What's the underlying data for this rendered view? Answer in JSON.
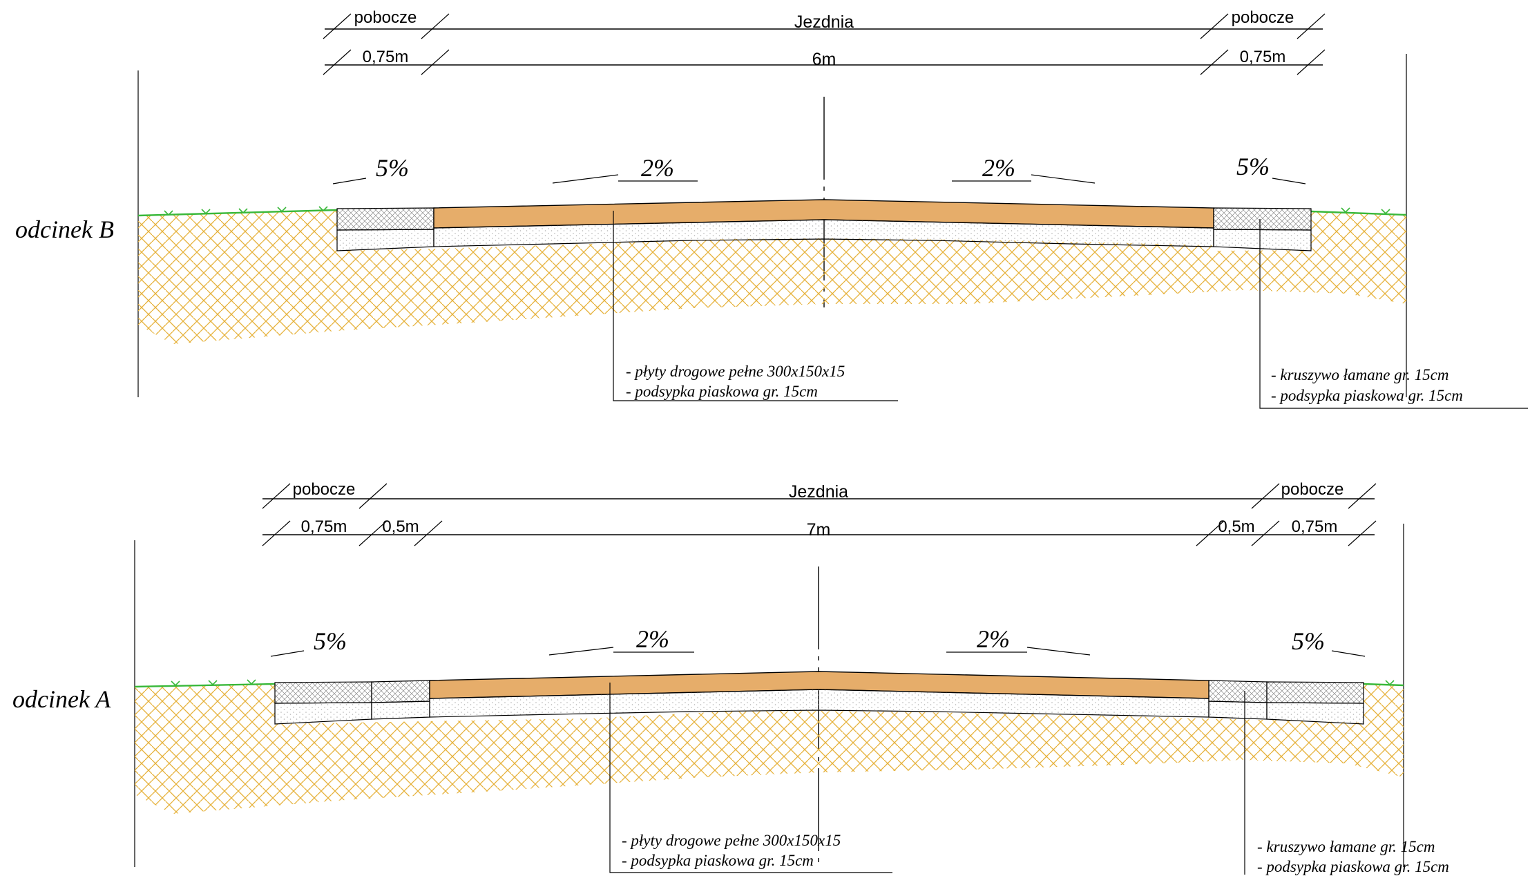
{
  "sections": [
    {
      "id": "b",
      "name": "odcinek  B",
      "shoulder_left_label": "pobocze",
      "carriageway_label": "Jezdnia",
      "shoulder_right_label": "pobocze",
      "shoulder_left_width": "0,75m",
      "carriageway_width": "6m",
      "shoulder_right_width": "0,75m",
      "slope_shoulder_left": "5%",
      "slope_lane_left": "2%",
      "slope_lane_right": "2%",
      "slope_shoulder_right": "5%",
      "note_carriageway": [
        "- płyty drogowe pełne 300x150x15",
        "- podsypka piaskowa gr. 15cm"
      ],
      "note_shoulder": [
        "- kruszywo łamane gr. 15cm",
        "- podsypka piaskowa gr. 15cm"
      ]
    },
    {
      "id": "a",
      "name": "odcinek  A",
      "shoulder_left_label": "pobocze",
      "carriageway_label": "Jezdnia",
      "shoulder_right_label": "pobocze",
      "shoulder_left_width": "0,75m",
      "strip_left_width": "0,5m",
      "carriageway_width": "7m",
      "strip_right_width": "0,5m",
      "shoulder_right_width": "0,75m",
      "slope_shoulder_left": "5%",
      "slope_lane_left": "2%",
      "slope_lane_right": "2%",
      "slope_shoulder_right": "5%",
      "note_carriageway": [
        "- płyty drogowe pełne 300x150x15",
        "- podsypka piaskowa gr. 15cm"
      ],
      "note_shoulder": [
        "- kruszywo łamane gr. 15cm",
        "- podsypka piaskowa gr. 15cm"
      ]
    }
  ],
  "colors": {
    "pavement": "#e6ad6a",
    "soil_hatch": "#e6b23c",
    "grass": "#39b83a",
    "outline": "#000000",
    "aggregate": "#8a8a8a",
    "sand_dots": "#b0b0b0"
  }
}
